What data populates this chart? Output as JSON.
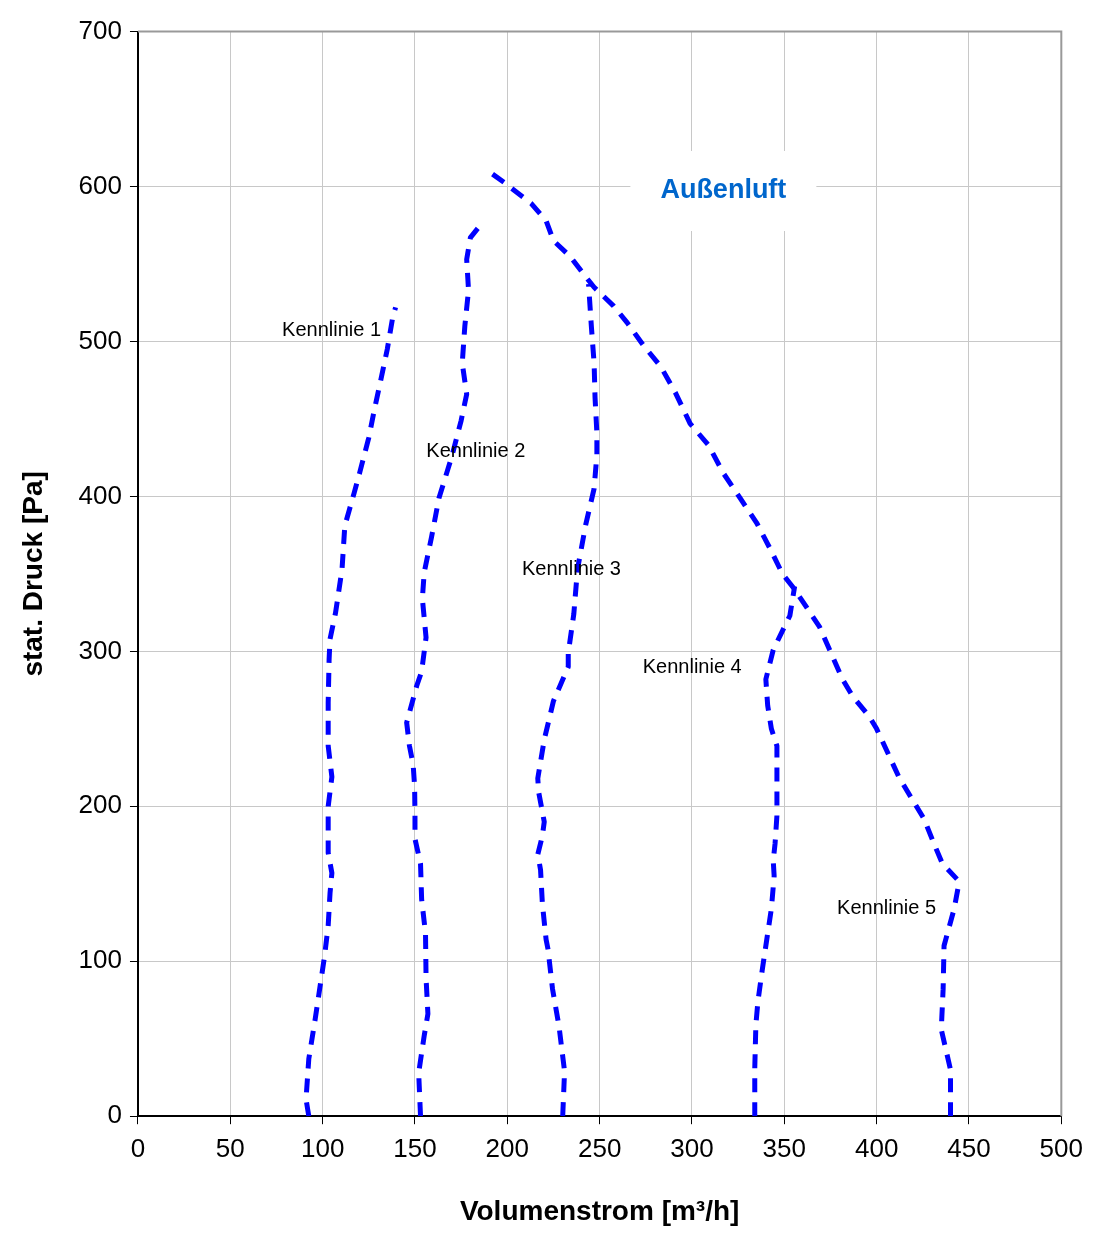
{
  "chart_data": {
    "type": "line",
    "title": "Außenluft",
    "xlabel": "Volumenstrom [m³/h]",
    "ylabel": "stat. Druck [Pa]",
    "xlim": [
      0,
      500
    ],
    "xticks": [
      0,
      50,
      100,
      150,
      200,
      250,
      300,
      350,
      400,
      450,
      500
    ],
    "ylim": [
      0,
      700
    ],
    "yticks": [
      0,
      100,
      200,
      300,
      400,
      500,
      600,
      700
    ],
    "grid": true,
    "legend": false,
    "line_style": "dashed",
    "marker": "none",
    "series": [
      {
        "name": "Kennlinie 1",
        "color": "#0000ff",
        "x": [
          92.5,
          91,
          92.5,
          96,
          98,
          101,
          103,
          104,
          105,
          103,
          103,
          105,
          103,
          103,
          103.5,
          104,
          107,
          110.5,
          112,
          117,
          120,
          125,
          128,
          132,
          135,
          138,
          139.5
        ],
        "values": [
          0,
          11,
          37,
          63,
          79,
          103,
          123,
          144,
          157,
          170,
          200,
          219,
          239,
          267,
          295,
          308,
          325,
          353,
          381,
          402,
          415,
          438,
          456,
          478,
          495,
          516,
          522
        ]
      },
      {
        "name": "Kennlinie 2",
        "color": "#0000ff",
        "x": [
          153,
          152,
          155,
          157,
          156,
          155.7,
          153.6,
          153,
          150,
          150,
          149.8,
          149,
          147,
          145.5,
          151,
          153.6,
          156,
          154,
          155,
          159,
          163,
          170,
          175,
          178,
          175.6,
          177,
          179,
          178,
          180,
          184
        ],
        "values": [
          0,
          28,
          52,
          66,
          89,
          118,
          140,
          163,
          179,
          194,
          213,
          227,
          239,
          254,
          278,
          287,
          309,
          334,
          351,
          374,
          399,
          426,
          449,
          466,
          486,
          510,
          533,
          553,
          567,
          573
        ]
      },
      {
        "name": "Kennlinie 3",
        "color": "#0000ff",
        "x": [
          230,
          231,
          228,
          224.5,
          222,
          221,
          219,
          218,
          216.5,
          219,
          220,
          217,
          216.5,
          220,
          225,
          233,
          233,
          236,
          238,
          242.5,
          247,
          248.5,
          248.5,
          247.5,
          247,
          245.5,
          244
        ],
        "values": [
          0,
          29,
          58,
          82,
          108,
          114,
          137,
          159,
          169,
          181,
          190,
          209,
          218,
          243,
          268,
          290,
          299,
          324,
          353,
          382,
          405,
          427,
          441,
          464,
          486,
          510,
          537
        ]
      },
      {
        "name": "Kennlinie 4",
        "color": "#0000ff",
        "x": [
          334,
          334,
          334.6,
          335.7,
          338,
          341,
          343,
          344.5,
          344,
          345,
          346,
          346,
          346,
          343,
          341,
          340,
          344,
          353,
          355.6
        ],
        "values": [
          0,
          31,
          59,
          74,
          94,
          118,
          134,
          155,
          165,
          176,
          194,
          219,
          239,
          250,
          265,
          282,
          301,
          323,
          342
        ]
      },
      {
        "name": "Kennlinie 5",
        "color": "#0000ff",
        "x": [
          440,
          440,
          435,
          436,
          436.5,
          442,
          444.5
        ],
        "values": [
          0,
          30,
          56,
          82,
          110,
          134,
          150
        ]
      },
      {
        "color": "#0000ff",
        "x": [
          192,
          199,
          213,
          221,
          225,
          234,
          241,
          247,
          257.5,
          265,
          274,
          283,
          291,
          299,
          309,
          317,
          326,
          335,
          342,
          349,
          355.6,
          369,
          376,
          381.5,
          387,
          396,
          400,
          407,
          412,
          419,
          425.6,
          431,
          435.6,
          443.5
        ],
        "values": [
          608,
          602,
          589,
          578,
          565,
          555,
          544,
          535,
          523,
          512,
          497,
          484,
          467,
          447,
          433,
          415,
          399,
          383,
          367,
          350,
          340,
          316,
          297,
          282,
          271,
          258,
          250,
          232,
          219,
          205,
          192,
          176,
          163,
          153
        ]
      }
    ]
  }
}
